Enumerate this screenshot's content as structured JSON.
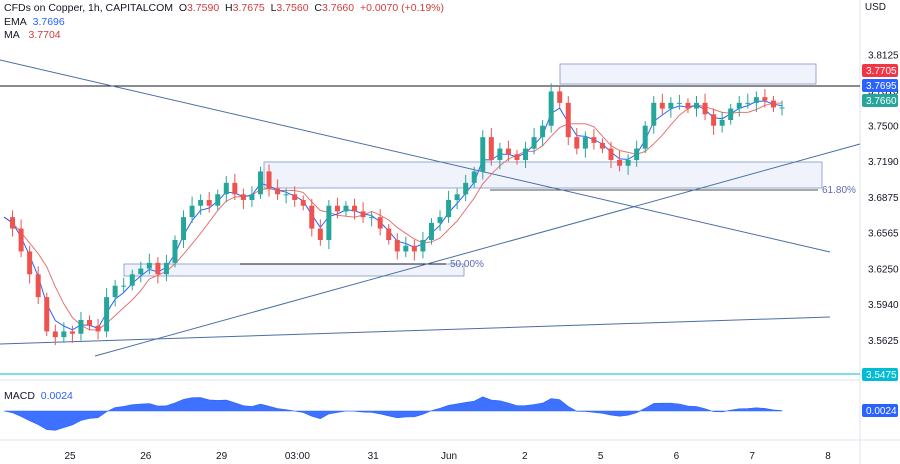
{
  "header": {
    "symbol": "CFDs on Copper, 1h, CAPITALCOM",
    "o_label": "O",
    "o": "3.7590",
    "h_label": "H",
    "h": "3.7675",
    "l_label": "L",
    "l": "3.7560",
    "c_label": "C",
    "c": "3.7660",
    "change": "+0.0070 (+0.19%)",
    "ema_label": "EMA",
    "ema": "3.7696",
    "ma_label": "MA",
    "ma": "3.7704",
    "macd_label": "MACD",
    "macd": "0.0024"
  },
  "currency": "USD",
  "colors": {
    "up": "#26a69a",
    "down": "#ef5350",
    "ema": "#2962ff",
    "ma": "#e57373",
    "trend": "#4a6fa5",
    "macd_fill": "#2962ff",
    "price_tag": "#26a69a",
    "ma_tag": "#f23645",
    "ema_tag": "#2962ff",
    "hline": "#131722",
    "support_tag": "#00bcd4"
  },
  "chart_data": {
    "type": "candlestick",
    "x_tick_labels": [
      "25",
      "26",
      "29",
      "03:00",
      "31",
      "Jun",
      "2",
      "5",
      "6",
      "7",
      "8"
    ],
    "y_tick_labels": [
      "3.8125",
      "3.7810",
      "3.7500",
      "3.7190",
      "3.6875",
      "3.6565",
      "3.6250",
      "3.5940",
      "3.5625"
    ],
    "ylim": [
      3.545,
      3.825
    ],
    "price_tags": {
      "ma": "3.7705",
      "ema": "3.7695",
      "last": "3.7660",
      "support": "3.5475",
      "macd": "0.0024"
    },
    "fib_labels": {
      "level_618": "61.80%",
      "level_50": "50.00%"
    },
    "close_path": [
      3.67,
      3.66,
      3.64,
      3.62,
      3.6,
      3.57,
      3.565,
      3.57,
      3.568,
      3.58,
      3.575,
      3.57,
      3.6,
      3.61,
      3.61,
      3.62,
      3.625,
      3.63,
      3.62,
      3.63,
      3.65,
      3.67,
      3.68,
      3.685,
      3.68,
      3.69,
      3.7,
      3.69,
      3.685,
      3.69,
      3.71,
      3.695,
      3.69,
      3.69,
      3.685,
      3.68,
      3.66,
      3.65,
      3.68,
      3.675,
      3.68,
      3.675,
      3.67,
      3.67,
      3.66,
      3.65,
      3.64,
      3.645,
      3.64,
      3.65,
      3.665,
      3.67,
      3.685,
      3.69,
      3.7,
      3.71,
      3.74,
      3.72,
      3.73,
      3.725,
      3.72,
      3.73,
      3.74,
      3.75,
      3.78,
      3.77,
      3.74,
      3.73,
      3.74,
      3.735,
      3.73,
      3.72,
      3.715,
      3.72,
      3.73,
      3.75,
      3.77,
      3.765,
      3.77,
      3.77,
      3.765,
      3.77,
      3.76,
      3.75,
      3.755,
      3.765,
      3.77,
      3.77,
      3.775,
      3.772,
      3.766,
      3.766
    ]
  }
}
